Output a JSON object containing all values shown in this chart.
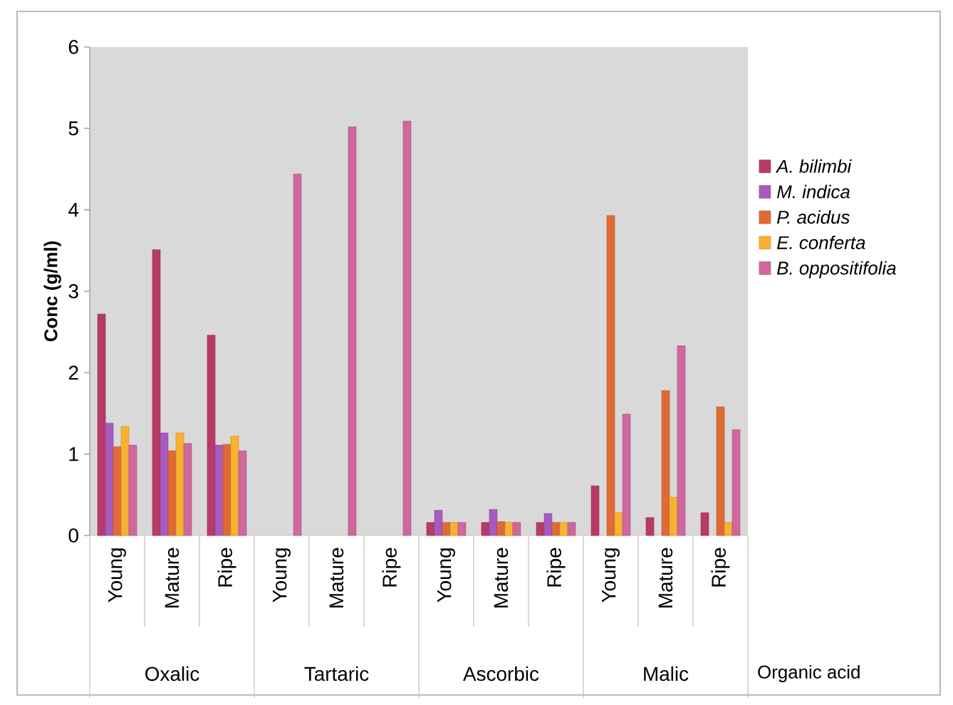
{
  "chart_data": {
    "type": "bar",
    "ylabel": "Conc (g/ml)",
    "xlabel": "Organic acid",
    "categories": [
      "Young",
      "Mature",
      "Ripe",
      "Young",
      "Mature",
      "Ripe",
      "Young",
      "Mature",
      "Ripe",
      "Young",
      "Mature",
      "Ripe"
    ],
    "annotations": [
      "Oxalic",
      "Tartaric",
      "Ascorbic",
      "Malic"
    ],
    "series": [
      {
        "name": "A. bilimbi",
        "color": "#b83a68",
        "values": [
          2.72,
          3.51,
          2.46,
          null,
          null,
          null,
          0.16,
          0.16,
          0.16,
          0.61,
          0.22,
          0.28
        ]
      },
      {
        "name": "M. indica",
        "color": "#a75bbf",
        "values": [
          1.38,
          1.26,
          1.11,
          null,
          null,
          null,
          0.31,
          0.32,
          0.27,
          null,
          null,
          null
        ]
      },
      {
        "name": "P. acidus",
        "color": "#e06a35",
        "values": [
          1.09,
          1.04,
          1.12,
          null,
          null,
          null,
          0.16,
          0.17,
          0.16,
          3.93,
          1.78,
          1.58
        ]
      },
      {
        "name": "E. conferta",
        "color": "#f8b231",
        "values": [
          1.34,
          1.26,
          1.22,
          null,
          null,
          null,
          0.16,
          0.16,
          0.16,
          0.28,
          0.47,
          0.16
        ]
      },
      {
        "name": "B. oppositifolia",
        "color": "#d0679f",
        "values": [
          1.11,
          1.13,
          1.04,
          4.44,
          5.02,
          5.09,
          0.16,
          0.16,
          0.16,
          1.49,
          2.33,
          1.3
        ]
      }
    ],
    "ylim": [
      0,
      6
    ],
    "yticks": [
      0,
      1,
      2,
      3,
      4,
      5,
      6
    ],
    "legend": "right",
    "grid": false
  }
}
